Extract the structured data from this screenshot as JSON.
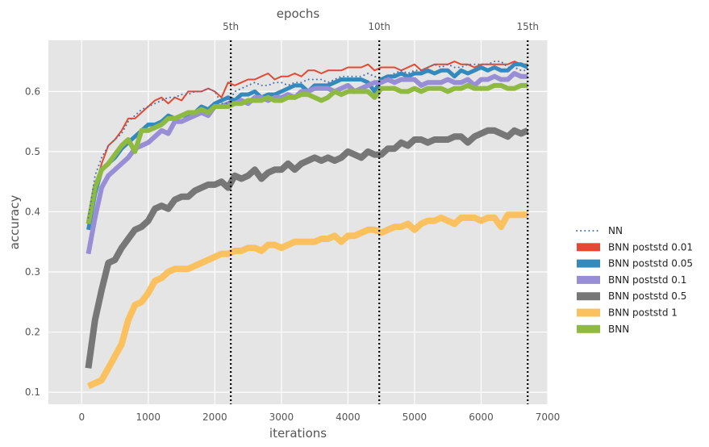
{
  "chart_data": {
    "type": "line",
    "xlabel": "iterations",
    "ylabel": "accuracy",
    "top_title": "epochs",
    "xlim": [
      -500,
      7000
    ],
    "ylim": [
      0.08,
      0.685
    ],
    "xticks": [
      0,
      1000,
      2000,
      3000,
      4000,
      5000,
      6000,
      7000
    ],
    "yticks": [
      0.1,
      0.2,
      0.3,
      0.4,
      0.5,
      0.6
    ],
    "grid": true,
    "background": "#e5e5e5",
    "legend_position": "outside-right",
    "epoch_markers": [
      {
        "label": "5th",
        "x": 2240
      },
      {
        "label": "10th",
        "x": 4470
      },
      {
        "label": "15th",
        "x": 6700
      }
    ],
    "x": [
      100,
      200,
      300,
      400,
      500,
      600,
      700,
      800,
      900,
      1000,
      1100,
      1200,
      1300,
      1400,
      1500,
      1600,
      1700,
      1800,
      1900,
      2000,
      2100,
      2200,
      2300,
      2400,
      2500,
      2600,
      2700,
      2800,
      2900,
      3000,
      3100,
      3200,
      3300,
      3400,
      3500,
      3600,
      3700,
      3800,
      3900,
      4000,
      4100,
      4200,
      4300,
      4400,
      4500,
      4600,
      4700,
      4800,
      4900,
      5000,
      5100,
      5200,
      5300,
      5400,
      5500,
      5600,
      5700,
      5800,
      5900,
      6000,
      6100,
      6200,
      6300,
      6400,
      6500,
      6600,
      6700
    ],
    "series": [
      {
        "name": "NN",
        "style": "dotted",
        "color": "#4c72b0",
        "width": 2,
        "values": [
          0.39,
          0.46,
          0.49,
          0.51,
          0.52,
          0.53,
          0.55,
          0.56,
          0.57,
          0.575,
          0.58,
          0.585,
          0.59,
          0.59,
          0.595,
          0.595,
          0.6,
          0.6,
          0.605,
          0.6,
          0.58,
          0.58,
          0.6,
          0.605,
          0.61,
          0.615,
          0.61,
          0.61,
          0.615,
          0.615,
          0.61,
          0.615,
          0.615,
          0.62,
          0.62,
          0.62,
          0.615,
          0.62,
          0.625,
          0.625,
          0.625,
          0.625,
          0.63,
          0.625,
          0.62,
          0.625,
          0.63,
          0.635,
          0.63,
          0.635,
          0.635,
          0.64,
          0.645,
          0.64,
          0.645,
          0.64,
          0.64,
          0.645,
          0.645,
          0.645,
          0.645,
          0.65,
          0.65,
          0.64,
          0.64,
          0.635,
          0.635
        ]
      },
      {
        "name": "BNN poststd 0.01",
        "color": "#e24a33",
        "width": 2,
        "values": [
          0.38,
          0.44,
          0.48,
          0.51,
          0.52,
          0.535,
          0.555,
          0.555,
          0.565,
          0.575,
          0.585,
          0.59,
          0.58,
          0.59,
          0.585,
          0.6,
          0.6,
          0.6,
          0.605,
          0.6,
          0.59,
          0.615,
          0.61,
          0.615,
          0.62,
          0.62,
          0.625,
          0.63,
          0.62,
          0.625,
          0.625,
          0.63,
          0.625,
          0.635,
          0.635,
          0.63,
          0.635,
          0.635,
          0.635,
          0.64,
          0.64,
          0.64,
          0.645,
          0.635,
          0.64,
          0.64,
          0.64,
          0.635,
          0.64,
          0.645,
          0.635,
          0.64,
          0.645,
          0.645,
          0.645,
          0.65,
          0.645,
          0.645,
          0.64,
          0.645,
          0.645,
          0.645,
          0.645,
          0.645,
          0.65,
          0.645,
          0.645
        ]
      },
      {
        "name": "BNN poststd 0.05",
        "color": "#348abd",
        "width": 5,
        "values": [
          0.37,
          0.43,
          0.47,
          0.48,
          0.49,
          0.505,
          0.515,
          0.525,
          0.535,
          0.545,
          0.545,
          0.55,
          0.56,
          0.555,
          0.56,
          0.56,
          0.565,
          0.575,
          0.57,
          0.58,
          0.585,
          0.59,
          0.585,
          0.595,
          0.595,
          0.6,
          0.59,
          0.595,
          0.595,
          0.6,
          0.605,
          0.61,
          0.61,
          0.6,
          0.61,
          0.61,
          0.61,
          0.615,
          0.62,
          0.62,
          0.62,
          0.62,
          0.615,
          0.6,
          0.62,
          0.625,
          0.625,
          0.63,
          0.625,
          0.63,
          0.63,
          0.635,
          0.63,
          0.635,
          0.635,
          0.625,
          0.635,
          0.63,
          0.635,
          0.64,
          0.635,
          0.64,
          0.635,
          0.635,
          0.645,
          0.645,
          0.64
        ]
      },
      {
        "name": "BNN poststd 0.1",
        "color": "#988ed5",
        "width": 6,
        "values": [
          0.33,
          0.39,
          0.44,
          0.46,
          0.47,
          0.48,
          0.49,
          0.505,
          0.51,
          0.515,
          0.525,
          0.535,
          0.53,
          0.55,
          0.55,
          0.555,
          0.56,
          0.565,
          0.56,
          0.575,
          0.575,
          0.58,
          0.58,
          0.585,
          0.58,
          0.59,
          0.59,
          0.585,
          0.59,
          0.59,
          0.595,
          0.59,
          0.6,
          0.6,
          0.605,
          0.605,
          0.605,
          0.6,
          0.605,
          0.61,
          0.6,
          0.605,
          0.61,
          0.615,
          0.615,
          0.62,
          0.615,
          0.62,
          0.62,
          0.62,
          0.61,
          0.615,
          0.615,
          0.615,
          0.62,
          0.615,
          0.615,
          0.62,
          0.61,
          0.62,
          0.62,
          0.625,
          0.62,
          0.62,
          0.63,
          0.625,
          0.625
        ]
      },
      {
        "name": "BNN poststd 0.5",
        "color": "#777777",
        "width": 8,
        "values": [
          0.14,
          0.22,
          0.27,
          0.315,
          0.32,
          0.34,
          0.355,
          0.37,
          0.375,
          0.385,
          0.405,
          0.41,
          0.405,
          0.42,
          0.425,
          0.425,
          0.435,
          0.44,
          0.445,
          0.445,
          0.45,
          0.44,
          0.46,
          0.455,
          0.46,
          0.47,
          0.455,
          0.465,
          0.47,
          0.47,
          0.48,
          0.47,
          0.48,
          0.485,
          0.49,
          0.485,
          0.49,
          0.485,
          0.49,
          0.5,
          0.495,
          0.49,
          0.5,
          0.495,
          0.495,
          0.505,
          0.505,
          0.515,
          0.51,
          0.52,
          0.52,
          0.515,
          0.52,
          0.52,
          0.52,
          0.525,
          0.525,
          0.515,
          0.525,
          0.53,
          0.535,
          0.535,
          0.53,
          0.525,
          0.535,
          0.53,
          0.535
        ]
      },
      {
        "name": "BNN poststd 1",
        "color": "#fbc15e",
        "width": 8,
        "values": [
          0.11,
          0.115,
          0.12,
          0.14,
          0.16,
          0.18,
          0.22,
          0.245,
          0.25,
          0.265,
          0.285,
          0.29,
          0.3,
          0.305,
          0.305,
          0.305,
          0.31,
          0.315,
          0.32,
          0.325,
          0.33,
          0.33,
          0.335,
          0.335,
          0.34,
          0.34,
          0.335,
          0.345,
          0.345,
          0.34,
          0.345,
          0.35,
          0.35,
          0.35,
          0.35,
          0.355,
          0.355,
          0.36,
          0.35,
          0.36,
          0.36,
          0.365,
          0.37,
          0.37,
          0.365,
          0.37,
          0.375,
          0.375,
          0.38,
          0.37,
          0.38,
          0.385,
          0.385,
          0.39,
          0.385,
          0.38,
          0.39,
          0.39,
          0.39,
          0.385,
          0.39,
          0.39,
          0.375,
          0.395,
          0.395,
          0.395,
          0.395
        ]
      },
      {
        "name": "BNN",
        "color": "#8eba42",
        "width": 6,
        "values": [
          0.38,
          0.44,
          0.47,
          0.48,
          0.495,
          0.51,
          0.52,
          0.5,
          0.535,
          0.535,
          0.54,
          0.545,
          0.555,
          0.555,
          0.56,
          0.565,
          0.565,
          0.57,
          0.565,
          0.575,
          0.575,
          0.575,
          0.58,
          0.58,
          0.585,
          0.585,
          0.585,
          0.59,
          0.585,
          0.585,
          0.59,
          0.59,
          0.595,
          0.595,
          0.59,
          0.585,
          0.59,
          0.6,
          0.595,
          0.6,
          0.6,
          0.6,
          0.6,
          0.59,
          0.605,
          0.605,
          0.605,
          0.6,
          0.6,
          0.605,
          0.6,
          0.605,
          0.605,
          0.605,
          0.6,
          0.605,
          0.605,
          0.61,
          0.605,
          0.605,
          0.605,
          0.61,
          0.61,
          0.605,
          0.605,
          0.61,
          0.61
        ]
      }
    ]
  }
}
